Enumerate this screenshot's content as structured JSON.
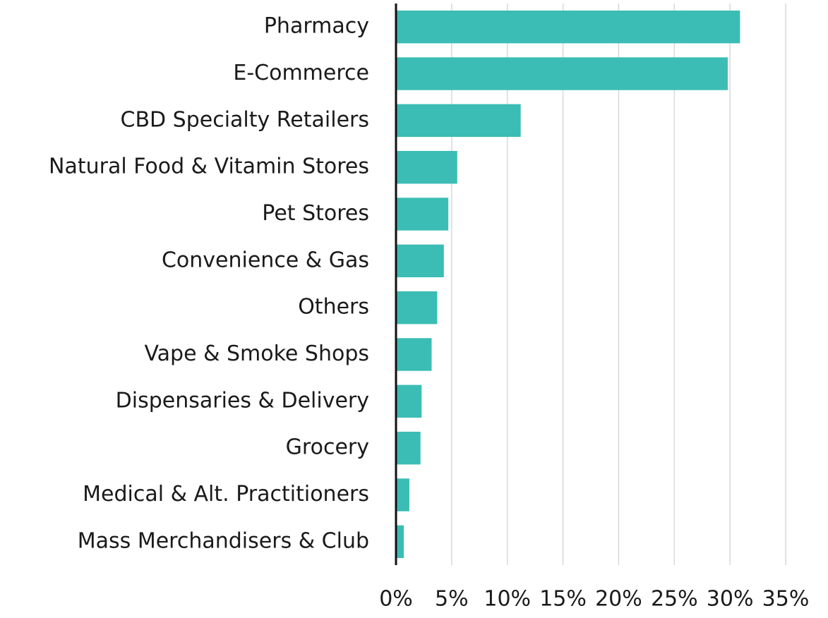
{
  "chart_data": {
    "type": "bar",
    "orientation": "horizontal",
    "categories": [
      "Pharmacy",
      "E-Commerce",
      "CBD Specialty Retailers",
      "Natural Food & Vitamin Stores",
      "Pet Stores",
      "Convenience & Gas",
      "Others",
      "Vape & Smoke Shops",
      "Dispensaries & Delivery",
      "Grocery",
      "Medical & Alt. Practitioners",
      "Mass Merchandisers & Club"
    ],
    "values": [
      30.9,
      29.8,
      11.2,
      5.5,
      4.7,
      4.3,
      3.7,
      3.2,
      2.3,
      2.2,
      1.2,
      0.7
    ],
    "color": "#3bbdb5",
    "xlim": [
      0,
      35
    ],
    "xticks": [
      {
        "value": 0,
        "label": "0%"
      },
      {
        "value": 5,
        "label": "5%"
      },
      {
        "value": 10,
        "label": "10%"
      },
      {
        "value": 15,
        "label": "15%"
      },
      {
        "value": 20,
        "label": "20%"
      },
      {
        "value": 25,
        "label": "25%"
      },
      {
        "value": 30,
        "label": "30%"
      },
      {
        "value": 35,
        "label": "35%"
      }
    ],
    "grid": true
  }
}
